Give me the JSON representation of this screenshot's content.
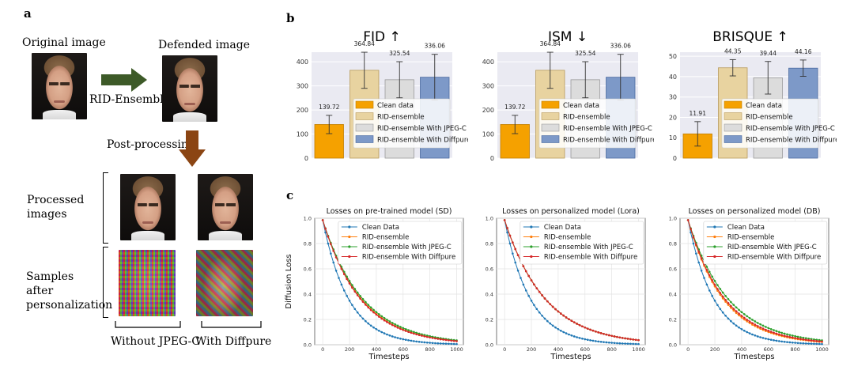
{
  "panel_a": {
    "letter": "a",
    "original_image_label": "Original image",
    "defended_image_label": "Defended image",
    "arrow_label": "RID-Ensemble",
    "post_processing_label": "Post-processing",
    "processed_images_label": "Processed images",
    "samples_label": "Samples after personalization",
    "without_label": "Without JPEG-C",
    "with_label": "With Diffpure"
  },
  "panel_b": {
    "letter": "b"
  },
  "panel_c": {
    "letter": "c"
  },
  "colors": {
    "clean": "#f5a100",
    "rid": "#e8d3a0",
    "jpeg": "#dcdcdc",
    "diffpure": "#7d99c8",
    "line_clean": "#1f77b4",
    "line_rid": "#ff7f0e",
    "line_jpeg": "#2ca02c",
    "line_diffpure": "#d62728"
  },
  "chart_data": [
    {
      "type": "bar",
      "title": "FID ↑",
      "categories": [
        "Clean data",
        "RID-ensemble",
        "RID-ensemble With JPEG-C",
        "RID-ensemble With Diffpure"
      ],
      "values": [
        139.72,
        364.84,
        325.54,
        336.06
      ],
      "value_labels": [
        "139.72",
        "364.84",
        "325.54",
        "336.06"
      ],
      "errors": [
        38,
        75,
        75,
        95
      ],
      "ylim": [
        0,
        440
      ],
      "yticks": [
        0,
        100,
        200,
        300,
        400
      ],
      "legend": "center-right"
    },
    {
      "type": "bar",
      "title": "ISM ↓",
      "categories": [
        "Clean data",
        "RID-ensemble",
        "RID-ensemble With JPEG-C",
        "RID-ensemble With Diffpure"
      ],
      "values": [
        139.72,
        364.84,
        325.54,
        336.06
      ],
      "value_labels": [
        "139.72",
        "364.84",
        "325.54",
        "336.06"
      ],
      "errors": [
        38,
        75,
        75,
        95
      ],
      "ylim": [
        0,
        440
      ],
      "yticks": [
        0,
        100,
        200,
        300,
        400
      ],
      "legend": "center-right"
    },
    {
      "type": "bar",
      "title": "BRISQUE ↑",
      "categories": [
        "Clean data",
        "RID-ensemble",
        "RID-ensemble With JPEG-C",
        "RID-ensemble With Diffpure"
      ],
      "values": [
        11.91,
        44.35,
        39.44,
        44.16
      ],
      "value_labels": [
        "11.91",
        "44.35",
        "39.44",
        "44.16"
      ],
      "errors": [
        6,
        4,
        8,
        4
      ],
      "ylim": [
        0,
        52
      ],
      "yticks": [
        0,
        10,
        20,
        30,
        40,
        50
      ],
      "legend": "center-right"
    },
    {
      "type": "line",
      "title": "Losses on pre-trained model (SD)",
      "xlabel": "Timesteps",
      "ylabel": "Diffusion Loss",
      "xlim": [
        -60,
        1050
      ],
      "ylim": [
        0.0,
        1.0
      ],
      "xticks": [
        0,
        200,
        400,
        600,
        800,
        1000
      ],
      "yticks": [
        0.0,
        0.2,
        0.4,
        0.6,
        0.8,
        1.0
      ],
      "legend": "upper-right",
      "grid": true,
      "series": [
        {
          "name": "Clean Data",
          "k": 5.2
        },
        {
          "name": "RID-ensemble",
          "k": 3.5
        },
        {
          "name": "RID-ensemble With JPEG-C",
          "k": 3.35
        },
        {
          "name": "RID-ensemble With Diffpure",
          "k": 3.55
        }
      ]
    },
    {
      "type": "line",
      "title": "Losses on personalized model (Lora)",
      "xlabel": "Timesteps",
      "ylabel": "",
      "xlim": [
        -60,
        1050
      ],
      "ylim": [
        0.0,
        1.0
      ],
      "xticks": [
        0,
        200,
        400,
        600,
        800,
        1000
      ],
      "yticks": [
        0.0,
        0.2,
        0.4,
        0.6,
        0.8,
        1.0
      ],
      "legend": "upper-right",
      "grid": true,
      "series": [
        {
          "name": "Clean Data",
          "k": 5.2
        },
        {
          "name": "RID-ensemble",
          "k": 3.3
        },
        {
          "name": "RID-ensemble With JPEG-C",
          "k": 3.3
        },
        {
          "name": "RID-ensemble With Diffpure",
          "k": 3.3
        }
      ]
    },
    {
      "type": "line",
      "title": "Losses on personalized model (DB)",
      "xlabel": "Timesteps",
      "ylabel": "",
      "xlim": [
        -60,
        1050
      ],
      "ylim": [
        0.0,
        1.0
      ],
      "xticks": [
        0,
        200,
        400,
        600,
        800,
        1000
      ],
      "yticks": [
        0.0,
        0.2,
        0.4,
        0.6,
        0.8,
        1.0
      ],
      "legend": "upper-right",
      "grid": true,
      "series": [
        {
          "name": "Clean Data",
          "k": 5.2
        },
        {
          "name": "RID-ensemble",
          "k": 3.8
        },
        {
          "name": "RID-ensemble With JPEG-C",
          "k": 3.35
        },
        {
          "name": "RID-ensemble With Diffpure",
          "k": 3.65
        }
      ]
    }
  ]
}
